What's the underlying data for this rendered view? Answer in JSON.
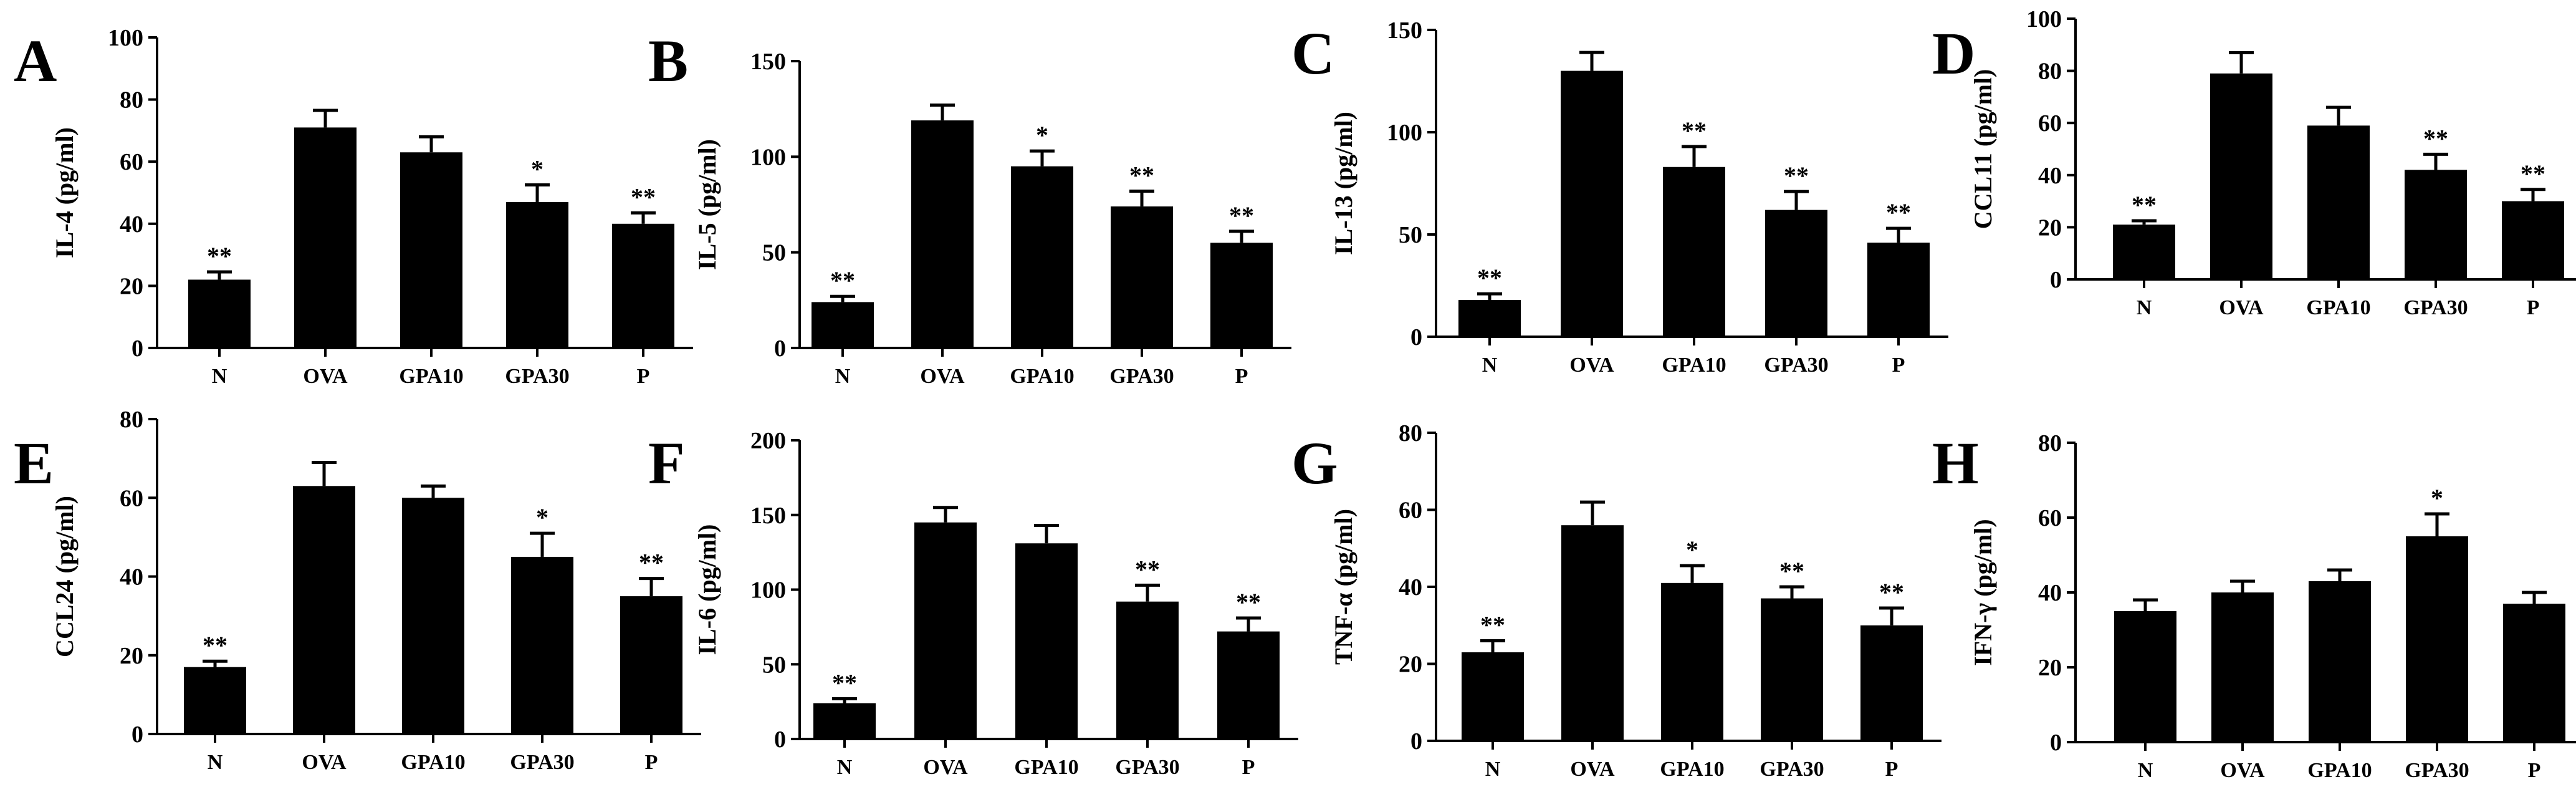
{
  "figure": {
    "colors": {
      "bar": "#000000",
      "axis": "#000000",
      "background": "#ffffff"
    }
  },
  "chart_data": [
    {
      "panel": "A",
      "type": "bar",
      "ylabel": "IL-4 (pg/ml)",
      "ylim": [
        0,
        100
      ],
      "yticks": [
        "0",
        "20",
        "40",
        "60",
        "80",
        "100"
      ],
      "categories": [
        "N",
        "OVA",
        "GPA10",
        "GPA30",
        "P"
      ],
      "values": [
        22,
        71,
        63,
        47,
        40
      ],
      "errors": [
        2.5,
        5.5,
        5,
        5.5,
        3.5
      ],
      "significance": [
        "**",
        "",
        "",
        "*",
        "**"
      ]
    },
    {
      "panel": "B",
      "type": "bar",
      "ylabel": "IL-5 (pg/ml)",
      "ylim": [
        0,
        150
      ],
      "yticks": [
        "0",
        "50",
        "100",
        "150"
      ],
      "categories": [
        "N",
        "OVA",
        "GPA10",
        "GPA30",
        "P"
      ],
      "values": [
        24,
        119,
        95,
        74,
        55
      ],
      "errors": [
        3,
        8,
        8,
        8,
        6
      ],
      "significance": [
        "**",
        "",
        "*",
        "**",
        "**"
      ]
    },
    {
      "panel": "C",
      "type": "bar",
      "ylabel": "IL-13 (pg/ml)",
      "ylim": [
        0,
        150
      ],
      "yticks": [
        "0",
        "50",
        "100",
        "150"
      ],
      "categories": [
        "N",
        "OVA",
        "GPA10",
        "GPA30",
        "P"
      ],
      "values": [
        18,
        130,
        83,
        62,
        46
      ],
      "errors": [
        3,
        9,
        10,
        9,
        7
      ],
      "significance": [
        "**",
        "",
        "**",
        "**",
        "**"
      ]
    },
    {
      "panel": "D",
      "type": "bar",
      "ylabel": "CCL11 (pg/ml)",
      "ylim": [
        0,
        100
      ],
      "yticks": [
        "0",
        "20",
        "40",
        "60",
        "80",
        "100"
      ],
      "categories": [
        "N",
        "OVA",
        "GPA10",
        "GPA30",
        "P"
      ],
      "values": [
        21,
        79,
        59,
        42,
        30
      ],
      "errors": [
        1.5,
        8,
        7,
        6,
        4.5
      ],
      "significance": [
        "**",
        "",
        "",
        "**",
        "**"
      ]
    },
    {
      "panel": "E",
      "type": "bar",
      "ylabel": "CCL24 (pg/ml)",
      "ylim": [
        0,
        80
      ],
      "yticks": [
        "0",
        "20",
        "40",
        "60",
        "80"
      ],
      "categories": [
        "N",
        "OVA",
        "GPA10",
        "GPA30",
        "P"
      ],
      "values": [
        17,
        63,
        60,
        45,
        35
      ],
      "errors": [
        1.5,
        6,
        3,
        6,
        4.5
      ],
      "significance": [
        "**",
        "",
        "",
        "*",
        "**"
      ]
    },
    {
      "panel": "F",
      "type": "bar",
      "ylabel": "IL-6 (pg/ml)",
      "ylim": [
        0,
        200
      ],
      "yticks": [
        "0",
        "50",
        "100",
        "150",
        "200"
      ],
      "categories": [
        "N",
        "OVA",
        "GPA10",
        "GPA30",
        "P"
      ],
      "values": [
        24,
        145,
        131,
        92,
        72
      ],
      "errors": [
        3,
        10,
        12,
        11,
        9
      ],
      "significance": [
        "**",
        "",
        "",
        "**",
        "**"
      ]
    },
    {
      "panel": "G",
      "type": "bar",
      "ylabel": "TNF-α (pg/ml)",
      "ylim": [
        0,
        80
      ],
      "yticks": [
        "0",
        "20",
        "40",
        "60",
        "80"
      ],
      "categories": [
        "N",
        "OVA",
        "GPA10",
        "GPA30",
        "P"
      ],
      "values": [
        23,
        56,
        41,
        37,
        30
      ],
      "errors": [
        3,
        6,
        4.5,
        3,
        4.5
      ],
      "significance": [
        "**",
        "",
        "*",
        "**",
        "**"
      ]
    },
    {
      "panel": "H",
      "type": "bar",
      "ylabel": "IFN-γ (pg/ml)",
      "ylim": [
        0,
        80
      ],
      "yticks": [
        "0",
        "20",
        "40",
        "60",
        "80"
      ],
      "categories": [
        "N",
        "OVA",
        "GPA10",
        "GPA30",
        "P"
      ],
      "values": [
        35,
        40,
        43,
        55,
        37
      ],
      "errors": [
        3,
        3,
        3,
        6,
        3
      ],
      "significance": [
        "",
        "",
        "",
        "*",
        ""
      ]
    }
  ]
}
